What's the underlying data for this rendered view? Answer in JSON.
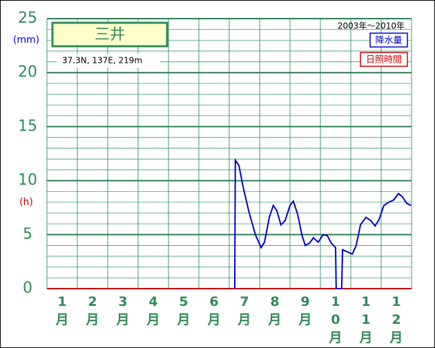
{
  "chart_data": {
    "type": "line",
    "title": "三井",
    "subtitle": "37.3N, 137E, 219m",
    "period": "2003年〜2010年",
    "y_unit_left": "(mm)",
    "y_unit_right": "(h)",
    "categories": [
      "1月",
      "2月",
      "3月",
      "4月",
      "5月",
      "6月",
      "7月",
      "8月",
      "9月",
      "10月",
      "11月",
      "12月"
    ],
    "xlim": [
      0,
      12
    ],
    "xticks": [
      0,
      1,
      2,
      3,
      4,
      5,
      6,
      7,
      8,
      9,
      10,
      11,
      12
    ],
    "ylim": [
      0,
      25
    ],
    "yticks": [
      0,
      5,
      10,
      15,
      20,
      25
    ],
    "yminor": [
      1,
      2,
      3,
      4,
      6,
      7,
      8,
      9,
      11,
      12,
      13,
      14,
      16,
      17,
      18,
      19,
      21,
      22,
      23,
      24
    ],
    "grid": true,
    "series": [
      {
        "name": "降水量",
        "color": "#0000cc",
        "x": [
          6.18,
          6.2,
          6.32,
          6.45,
          6.64,
          6.86,
          7.05,
          7.16,
          7.32,
          7.45,
          7.57,
          7.7,
          7.84,
          8.0,
          8.11,
          8.25,
          8.39,
          8.5,
          8.64,
          8.77,
          8.93,
          9.09,
          9.23,
          9.36,
          9.5,
          9.52,
          9.7,
          9.73,
          9.89,
          10.05,
          10.18,
          10.32,
          10.5,
          10.66,
          10.8,
          10.93,
          11.09,
          11.25,
          11.41,
          11.57,
          11.7,
          11.84,
          11.98
        ],
        "values": [
          0,
          11.9,
          11.4,
          9.5,
          7.2,
          5.0,
          3.8,
          4.3,
          6.6,
          7.7,
          7.2,
          5.9,
          6.3,
          7.7,
          8.1,
          6.9,
          5.0,
          4.0,
          4.2,
          4.7,
          4.3,
          5.0,
          4.9,
          4.2,
          3.8,
          0,
          0,
          3.6,
          3.4,
          3.2,
          4.0,
          5.9,
          6.6,
          6.3,
          5.8,
          6.4,
          7.7,
          8.0,
          8.2,
          8.8,
          8.5,
          7.9,
          7.7
        ]
      },
      {
        "name": "日照時間",
        "color": "#cc0000",
        "x": [
          0,
          12
        ],
        "values": [
          0,
          0
        ]
      }
    ]
  }
}
